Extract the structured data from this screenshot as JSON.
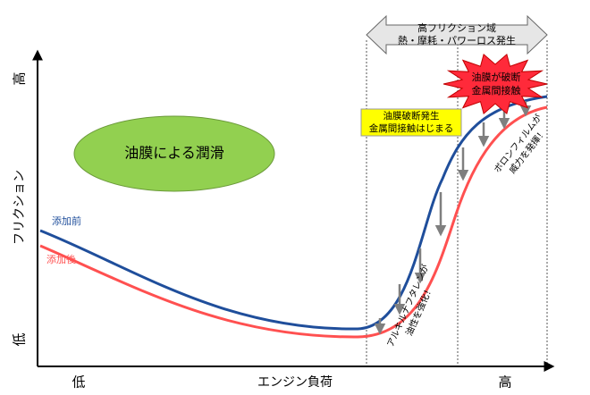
{
  "axes": {
    "y_label": "フリクション",
    "y_high": "高",
    "y_low": "低",
    "x_label": "エンジン負荷",
    "x_low": "低",
    "x_high": "高"
  },
  "zone": {
    "title": "高フリクション域",
    "subtitle": "熱・摩耗・パワーロス発生"
  },
  "lubrication": "油膜による潤滑",
  "legend": {
    "before": "添加前",
    "after": "添加後"
  },
  "callouts": {
    "onset": [
      "油膜破断発生",
      "金属間接触はじまる"
    ],
    "burst": [
      "油膜が破断",
      "金属間接触"
    ],
    "naphthalene": [
      "アルキルナフタレンが",
      "油性を強化！"
    ],
    "boron": [
      "ボロンフィルムが",
      "威力を発揮！"
    ]
  }
}
